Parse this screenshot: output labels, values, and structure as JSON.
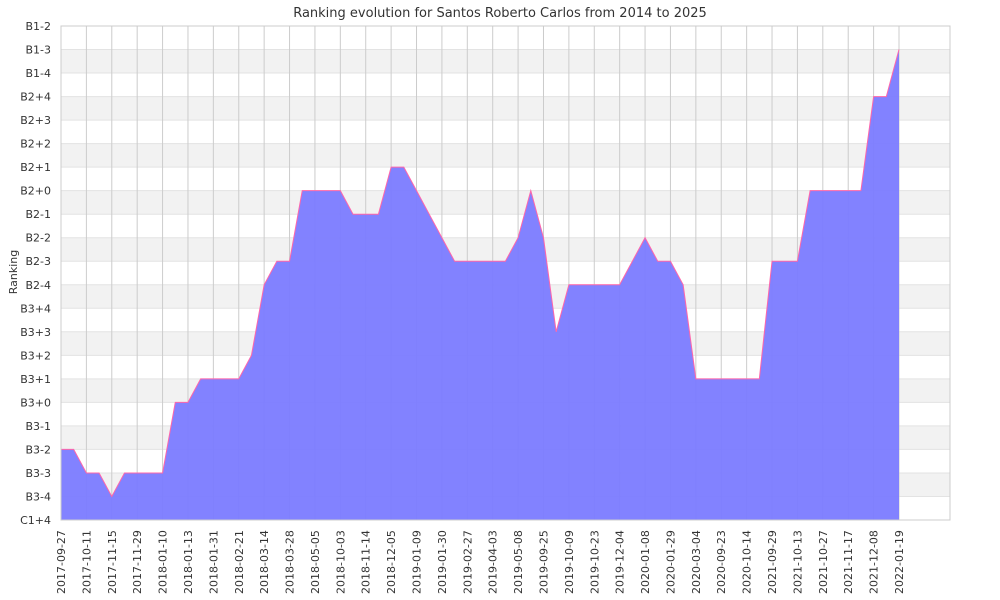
{
  "chart_data": {
    "type": "area",
    "title": "Ranking evolution for Santos Roberto Carlos from 2014 to 2025",
    "ylabel": "Ranking",
    "xlabel": "",
    "y_categories": [
      "C1+4",
      "B3-4",
      "B3-3",
      "B3-2",
      "B3-1",
      "B3+0",
      "B3+1",
      "B3+2",
      "B3+3",
      "B3+4",
      "B2-4",
      "B2-3",
      "B2-2",
      "B2-1",
      "B2+0",
      "B2+1",
      "B2+2",
      "B2+3",
      "B2+4",
      "B1-4",
      "B1-3",
      "B1-2"
    ],
    "x_tick_labels": [
      "2017-09-27",
      "2017-10-11",
      "2017-11-15",
      "2017-11-29",
      "2018-01-10",
      "2018-01-13",
      "2018-01-31",
      "2018-02-21",
      "2018-03-14",
      "2018-03-28",
      "2018-05-05",
      "2018-10-03",
      "2018-11-14",
      "2018-12-05",
      "2019-01-09",
      "2019-01-30",
      "2019-02-27",
      "2019-04-03",
      "2019-05-08",
      "2019-09-25",
      "2019-10-09",
      "2019-10-23",
      "2019-12-04",
      "2020-01-08",
      "2020-01-29",
      "2020-03-04",
      "2020-09-23",
      "2020-10-14",
      "2021-09-29",
      "2021-10-13",
      "2021-10-27",
      "2021-11-17",
      "2021-12-08",
      "2022-01-19"
    ],
    "series": [
      {
        "values": [
          "B3-2",
          "B3-2",
          "B3-3",
          "B3-3",
          "B3-4",
          "B3-3",
          "B3-3",
          "B3-3",
          "B3-3",
          "B3+0",
          "B3+0",
          "B3+1",
          "B3+1",
          "B3+1",
          "B3+1",
          "B3+2",
          "B2-4",
          "B2-3",
          "B2-3",
          "B2+0",
          "B2+0",
          "B2+0",
          "B2+0",
          "B2-1",
          "B2-1",
          "B2-1",
          "B2+1",
          "B2+1",
          "B2+0",
          "B2-1",
          "B2-2",
          "B2-3",
          "B2-3",
          "B2-3",
          "B2-3",
          "B2-3",
          "B2-2",
          "B2+0",
          "B2-2",
          "B3+3",
          "B2-4",
          "B2-4",
          "B2-4",
          "B2-4",
          "B2-4",
          "B2-3",
          "B2-2",
          "B2-3",
          "B2-3",
          "B2-4",
          "B3+1",
          "B3+1",
          "B3+1",
          "B3+1",
          "B3+1",
          "B3+1",
          "B2-3",
          "B2-3",
          "B2-3",
          "B2+0",
          "B2+0",
          "B2+0",
          "B2+0",
          "B2+0",
          "B2+4",
          "B2+4",
          "B1-3"
        ]
      }
    ],
    "colors": {
      "fill": "#7b7bff",
      "line": "#ff66aa",
      "grid": "#cccccc",
      "band": "#f2f2f2"
    },
    "grid": true,
    "legend": "none"
  }
}
